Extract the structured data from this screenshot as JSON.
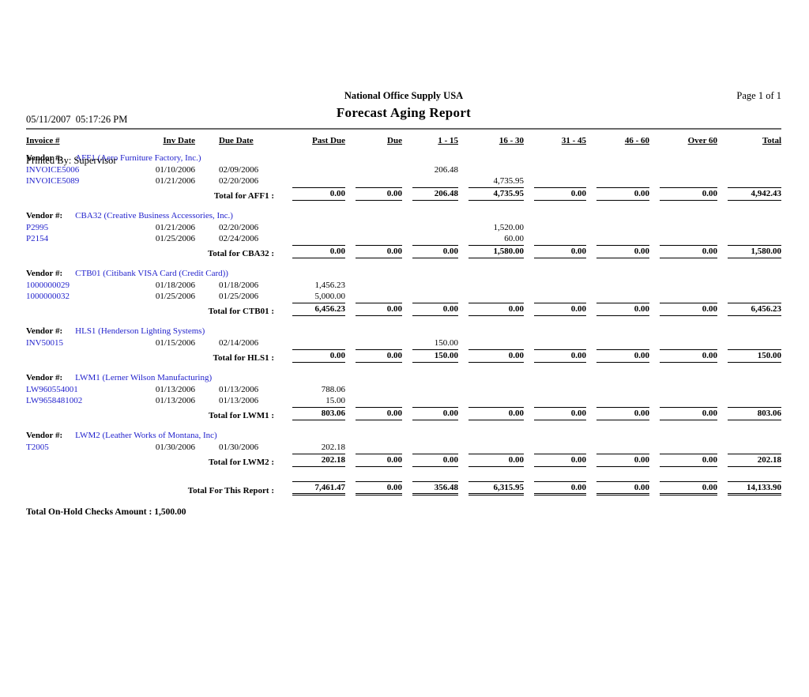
{
  "meta": {
    "datetime": "05/11/2007  05:17:26 PM",
    "printed_by": "Printed By: Supervisor",
    "company": "National Office Supply USA",
    "report_title": "Forecast Aging Report",
    "page": "Page 1 of 1"
  },
  "labels": {
    "vendor": "Vendor #:"
  },
  "columns": [
    "Invoice #",
    "Inv Date",
    "Due Date",
    "Past Due",
    "Due",
    "1 - 15",
    "16 - 30",
    "31 - 45",
    "46 - 60",
    "Over 60",
    "Total"
  ],
  "groups": [
    {
      "vendor_name": "AFF1 (Aero Furniture Factory, Inc.)",
      "rows": [
        [
          "INVOICE5006",
          "01/10/2006",
          "02/09/2006",
          "",
          "",
          "206.48",
          "",
          "",
          "",
          "",
          ""
        ],
        [
          "INVOICE5089",
          "01/21/2006",
          "02/20/2006",
          "",
          "",
          "",
          "4,735.95",
          "",
          "",
          "",
          ""
        ]
      ],
      "total_label": "Total for AFF1 :",
      "totals": [
        "0.00",
        "0.00",
        "206.48",
        "4,735.95",
        "0.00",
        "0.00",
        "0.00",
        "4,942.43"
      ]
    },
    {
      "vendor_name": "CBA32 (Creative Business Accessories, Inc.)",
      "rows": [
        [
          "P2995",
          "01/21/2006",
          "02/20/2006",
          "",
          "",
          "",
          "1,520.00",
          "",
          "",
          "",
          ""
        ],
        [
          "P2154",
          "01/25/2006",
          "02/24/2006",
          "",
          "",
          "",
          "60.00",
          "",
          "",
          "",
          ""
        ]
      ],
      "total_label": "Total for CBA32 :",
      "totals": [
        "0.00",
        "0.00",
        "0.00",
        "1,580.00",
        "0.00",
        "0.00",
        "0.00",
        "1,580.00"
      ]
    },
    {
      "vendor_name": "CTB01 (Citibank VISA Card (Credit Card))",
      "rows": [
        [
          "1000000029",
          "01/18/2006",
          "01/18/2006",
          "1,456.23",
          "",
          "",
          "",
          "",
          "",
          "",
          ""
        ],
        [
          "1000000032",
          "01/25/2006",
          "01/25/2006",
          "5,000.00",
          "",
          "",
          "",
          "",
          "",
          "",
          ""
        ]
      ],
      "total_label": "Total for CTB01 :",
      "totals": [
        "6,456.23",
        "0.00",
        "0.00",
        "0.00",
        "0.00",
        "0.00",
        "0.00",
        "6,456.23"
      ]
    },
    {
      "vendor_name": "HLS1 (Henderson Lighting Systems)",
      "rows": [
        [
          "INV50015",
          "01/15/2006",
          "02/14/2006",
          "",
          "",
          "150.00",
          "",
          "",
          "",
          "",
          ""
        ]
      ],
      "total_label": "Total for HLS1 :",
      "totals": [
        "0.00",
        "0.00",
        "150.00",
        "0.00",
        "0.00",
        "0.00",
        "0.00",
        "150.00"
      ]
    },
    {
      "vendor_name": "LWM1 (Lerner Wilson Manufacturing)",
      "rows": [
        [
          "LW960554001",
          "01/13/2006",
          "01/13/2006",
          "788.06",
          "",
          "",
          "",
          "",
          "",
          "",
          ""
        ],
        [
          "LW9658481002",
          "01/13/2006",
          "01/13/2006",
          "15.00",
          "",
          "",
          "",
          "",
          "",
          "",
          ""
        ]
      ],
      "total_label": "Total for LWM1 :",
      "totals": [
        "803.06",
        "0.00",
        "0.00",
        "0.00",
        "0.00",
        "0.00",
        "0.00",
        "803.06"
      ]
    },
    {
      "vendor_name": "LWM2 (Leather Works of Montana, Inc)",
      "rows": [
        [
          "T2005",
          "01/30/2006",
          "01/30/2006",
          "202.18",
          "",
          "",
          "",
          "",
          "",
          "",
          ""
        ]
      ],
      "total_label": "Total for LWM2 :",
      "totals": [
        "202.18",
        "0.00",
        "0.00",
        "0.00",
        "0.00",
        "0.00",
        "0.00",
        "202.18"
      ]
    }
  ],
  "report_total_label": "Total For This Report :",
  "report_totals": [
    "7,461.47",
    "0.00",
    "356.48",
    "6,315.95",
    "0.00",
    "0.00",
    "0.00",
    "14,133.90"
  ],
  "footer": {
    "on_hold": "Total On-Hold Checks Amount : 1,500.00"
  }
}
